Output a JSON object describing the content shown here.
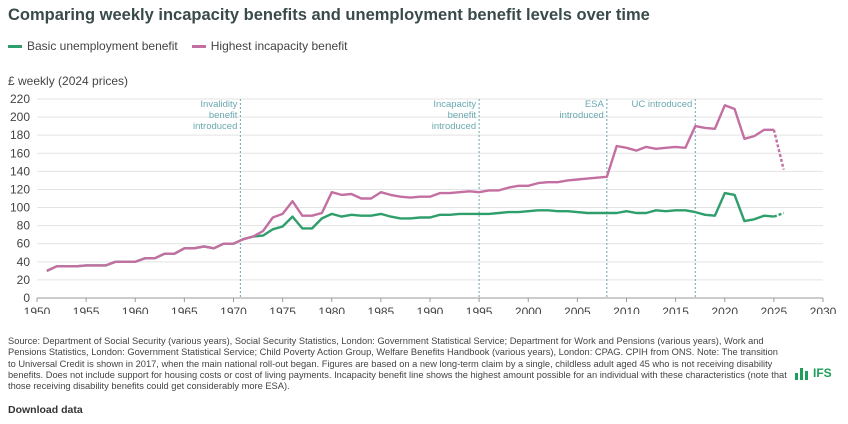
{
  "chart_data": {
    "type": "line",
    "title": "Comparing weekly incapacity benefits and unemployment benefit levels over time",
    "ylabel": "£ weekly (2024 prices)",
    "xlabel": "",
    "xlim": [
      1950,
      2030
    ],
    "ylim": [
      0,
      220
    ],
    "x_ticks": [
      1950,
      1955,
      1960,
      1965,
      1970,
      1975,
      1980,
      1985,
      1990,
      1995,
      2000,
      2005,
      2010,
      2015,
      2020,
      2025,
      2030
    ],
    "y_ticks": [
      0,
      20,
      40,
      60,
      80,
      100,
      120,
      140,
      160,
      180,
      200,
      220
    ],
    "grid": true,
    "legend": "top-left",
    "series": [
      {
        "name": "Basic unemployment benefit",
        "color": "#2e9e6b",
        "points": [
          [
            1951,
            30
          ],
          [
            1952,
            35
          ],
          [
            1953,
            35
          ],
          [
            1954,
            35
          ],
          [
            1955,
            36
          ],
          [
            1956,
            36
          ],
          [
            1957,
            36
          ],
          [
            1958,
            40
          ],
          [
            1959,
            40
          ],
          [
            1960,
            40
          ],
          [
            1961,
            44
          ],
          [
            1962,
            44
          ],
          [
            1963,
            49
          ],
          [
            1964,
            49
          ],
          [
            1965,
            55
          ],
          [
            1966,
            55
          ],
          [
            1967,
            57
          ],
          [
            1968,
            55
          ],
          [
            1969,
            60
          ],
          [
            1970,
            60
          ],
          [
            1971,
            65
          ],
          [
            1972,
            68
          ],
          [
            1973,
            69
          ],
          [
            1974,
            76
          ],
          [
            1975,
            79
          ],
          [
            1976,
            90
          ],
          [
            1977,
            77
          ],
          [
            1978,
            77
          ],
          [
            1979,
            88
          ],
          [
            1980,
            93
          ],
          [
            1981,
            90
          ],
          [
            1982,
            92
          ],
          [
            1983,
            91
          ],
          [
            1984,
            91
          ],
          [
            1985,
            93
          ],
          [
            1986,
            90
          ],
          [
            1987,
            88
          ],
          [
            1988,
            88
          ],
          [
            1989,
            89
          ],
          [
            1990,
            89
          ],
          [
            1991,
            92
          ],
          [
            1992,
            92
          ],
          [
            1993,
            93
          ],
          [
            1994,
            93
          ],
          [
            1995,
            93
          ],
          [
            1996,
            93
          ],
          [
            1997,
            94
          ],
          [
            1998,
            95
          ],
          [
            1999,
            95
          ],
          [
            2000,
            96
          ],
          [
            2001,
            97
          ],
          [
            2002,
            97
          ],
          [
            2003,
            96
          ],
          [
            2004,
            96
          ],
          [
            2005,
            95
          ],
          [
            2006,
            94
          ],
          [
            2007,
            94
          ],
          [
            2008,
            94
          ],
          [
            2009,
            94
          ],
          [
            2010,
            96
          ],
          [
            2011,
            94
          ],
          [
            2012,
            94
          ],
          [
            2013,
            97
          ],
          [
            2014,
            96
          ],
          [
            2015,
            97
          ],
          [
            2016,
            97
          ],
          [
            2017,
            95
          ],
          [
            2018,
            92
          ],
          [
            2019,
            91
          ],
          [
            2020,
            116
          ],
          [
            2021,
            114
          ],
          [
            2022,
            85
          ],
          [
            2023,
            87
          ],
          [
            2024,
            91
          ],
          [
            2025,
            90
          ]
        ],
        "projection": [
          [
            2025,
            90
          ],
          [
            2026,
            94
          ]
        ]
      },
      {
        "name": "Highest incapacity benefit",
        "color": "#c36fa2",
        "points": [
          [
            1951,
            30
          ],
          [
            1952,
            35
          ],
          [
            1953,
            35
          ],
          [
            1954,
            35
          ],
          [
            1955,
            36
          ],
          [
            1956,
            36
          ],
          [
            1957,
            36
          ],
          [
            1958,
            40
          ],
          [
            1959,
            40
          ],
          [
            1960,
            40
          ],
          [
            1961,
            44
          ],
          [
            1962,
            44
          ],
          [
            1963,
            49
          ],
          [
            1964,
            49
          ],
          [
            1965,
            55
          ],
          [
            1966,
            55
          ],
          [
            1967,
            57
          ],
          [
            1968,
            55
          ],
          [
            1969,
            60
          ],
          [
            1970,
            60
          ],
          [
            1971,
            65
          ],
          [
            1972,
            68
          ],
          [
            1973,
            74
          ],
          [
            1974,
            89
          ],
          [
            1975,
            93
          ],
          [
            1976,
            107
          ],
          [
            1977,
            91
          ],
          [
            1978,
            91
          ],
          [
            1979,
            94
          ],
          [
            1980,
            117
          ],
          [
            1981,
            114
          ],
          [
            1982,
            115
          ],
          [
            1983,
            110
          ],
          [
            1984,
            110
          ],
          [
            1985,
            117
          ],
          [
            1986,
            114
          ],
          [
            1987,
            112
          ],
          [
            1988,
            111
          ],
          [
            1989,
            112
          ],
          [
            1990,
            112
          ],
          [
            1991,
            116
          ],
          [
            1992,
            116
          ],
          [
            1993,
            117
          ],
          [
            1994,
            118
          ],
          [
            1995,
            117
          ],
          [
            1996,
            119
          ],
          [
            1997,
            119
          ],
          [
            1998,
            122
          ],
          [
            1999,
            124
          ],
          [
            2000,
            124
          ],
          [
            2001,
            127
          ],
          [
            2002,
            128
          ],
          [
            2003,
            128
          ],
          [
            2004,
            130
          ],
          [
            2005,
            131
          ],
          [
            2006,
            132
          ],
          [
            2007,
            133
          ],
          [
            2008,
            134
          ],
          [
            2009,
            168
          ],
          [
            2010,
            166
          ],
          [
            2011,
            163
          ],
          [
            2012,
            167
          ],
          [
            2013,
            165
          ],
          [
            2014,
            166
          ],
          [
            2015,
            167
          ],
          [
            2016,
            166
          ],
          [
            2017,
            190
          ],
          [
            2018,
            188
          ],
          [
            2019,
            187
          ],
          [
            2020,
            213
          ],
          [
            2021,
            209
          ],
          [
            2022,
            176
          ],
          [
            2023,
            179
          ],
          [
            2024,
            186
          ],
          [
            2025,
            186
          ]
        ],
        "projection": [
          [
            2025,
            186
          ],
          [
            2026,
            142
          ]
        ]
      }
    ],
    "annotations": [
      {
        "x": 1970.7,
        "label": "Invalidity\nbenefit\nintroduced"
      },
      {
        "x": 1995.0,
        "label": "Incapacity\nbenefit\nintroduced"
      },
      {
        "x": 2008.0,
        "label": "ESA\nintroduced"
      },
      {
        "x": 2017.0,
        "label": "UC introduced"
      }
    ]
  },
  "legend": {
    "unemployment_label": "Basic unemployment benefit",
    "incapacity_label": "Highest incapacity benefit",
    "unemployment_color": "#2e9e6b",
    "incapacity_color": "#c36fa2"
  },
  "source_text": "Source: Department of Social Security (various years), Social Security Statistics, London: Government Statistical Service; Department for Work and Pensions (various years), Work and Pensions Statistics, London: Government Statistical Service; Child Poverty Action Group, Welfare Benefits Handbook (various years), London: CPAG. CPIH from ONS. Note: The transition to Universal Credit is shown in 2017, when the main national roll-out began. Figures are based on a new long-term claim by a single, childless adult aged 45 who is not receiving disability benefits. Does not include support for housing costs or cost of living payments. Incapacity benefit line shows the highest amount possible for an individual with these characteristics (note that those receiving disability benefits could get considerably more ESA).",
  "logo_text": "IFS",
  "download_label": "Download data"
}
